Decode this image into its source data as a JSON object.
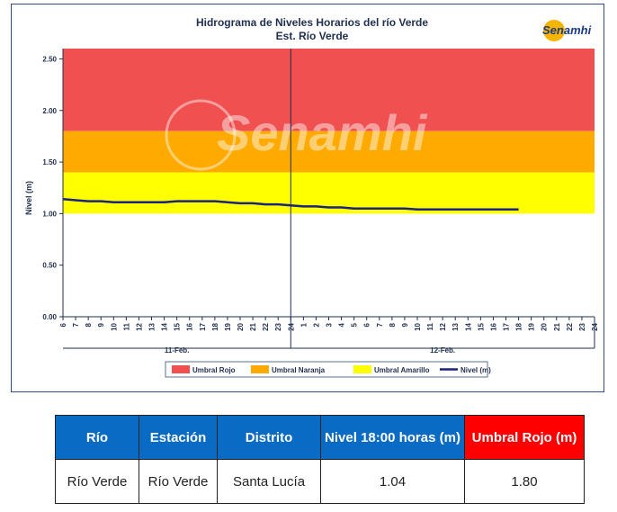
{
  "chart_data": {
    "type": "line",
    "title": "Hidrograma de Niveles Horarios del río Verde",
    "subtitle": "Est. Río Verde",
    "ylabel": "Nivel (m)",
    "xlabel": "",
    "ylim": [
      0,
      2.6
    ],
    "yticks": [
      "0.00",
      "0.50",
      "1.00",
      "1.50",
      "2.00",
      "2.50"
    ],
    "x_ticks": [
      "6",
      "7",
      "8",
      "9",
      "10",
      "11",
      "12",
      "13",
      "14",
      "15",
      "16",
      "17",
      "18",
      "19",
      "20",
      "21",
      "22",
      "23",
      "24",
      "1",
      "2",
      "3",
      "4",
      "5",
      "6",
      "7",
      "8",
      "9",
      "10",
      "11",
      "12",
      "13",
      "14",
      "15",
      "16",
      "17",
      "18",
      "19",
      "20",
      "21",
      "22",
      "23",
      "24"
    ],
    "day_labels": [
      "11-Feb.",
      "12-Feb."
    ],
    "bands": [
      {
        "name": "Umbral Rojo",
        "from": 1.8,
        "to": 2.6,
        "color": "#f05050"
      },
      {
        "name": "Umbral Naranja",
        "from": 1.4,
        "to": 1.8,
        "color": "#ffaa00"
      },
      {
        "name": "Umbral Amarillo",
        "from": 1.0,
        "to": 1.4,
        "color": "#ffff00"
      }
    ],
    "series": [
      {
        "name": "Nivel (m)",
        "color": "#1a237e",
        "values": [
          1.14,
          1.13,
          1.12,
          1.12,
          1.11,
          1.11,
          1.11,
          1.11,
          1.11,
          1.12,
          1.12,
          1.12,
          1.12,
          1.11,
          1.1,
          1.1,
          1.09,
          1.09,
          1.08,
          1.07,
          1.07,
          1.06,
          1.06,
          1.05,
          1.05,
          1.05,
          1.05,
          1.05,
          1.04,
          1.04,
          1.04,
          1.04,
          1.04,
          1.04,
          1.04,
          1.04,
          1.04
        ]
      }
    ],
    "legend": [
      "Umbral Rojo",
      "Umbral Naranja",
      "Umbral Amarillo",
      "Nivel (m)"
    ],
    "legend_position": "bottom",
    "grid": false
  },
  "logo": {
    "text": "Senamhi",
    "watermark": "Senamhi"
  },
  "table": {
    "headers": [
      "Río",
      "Estación",
      "Distrito",
      "Nivel 18:00 horas (m)",
      "Umbral Rojo (m)"
    ],
    "row": [
      "Río Verde",
      "Río Verde",
      "Santa Lucía",
      "1.04",
      "1.80"
    ]
  }
}
